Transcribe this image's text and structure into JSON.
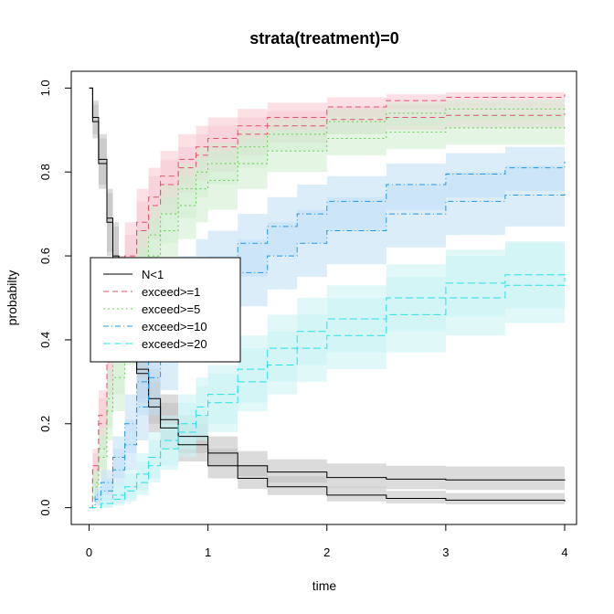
{
  "chart_data": {
    "type": "line",
    "title": "strata(treatment)=0",
    "xlabel": "time",
    "ylabel": "probabilty",
    "xlim": [
      -0.15,
      4.1
    ],
    "ylim": [
      -0.04,
      1.04
    ],
    "xticks": [
      0,
      1,
      2,
      3,
      4
    ],
    "xtick_labels": [
      "0",
      "1",
      "2",
      "3",
      "4"
    ],
    "yticks": [
      0.0,
      0.2,
      0.4,
      0.6,
      0.8,
      1.0
    ],
    "ytick_labels": [
      "0.0",
      "0.2",
      "0.4",
      "0.6",
      "0.8",
      "1.0"
    ],
    "grid": false,
    "legend_position": "left",
    "series": [
      {
        "name": "N<1",
        "color": "#000000",
        "band_color": "#bdbdbd",
        "dash": "",
        "curves": [
          {
            "x": [
              0,
              0.03,
              0.08,
              0.15,
              0.2,
              0.25,
              0.3,
              0.4,
              0.5,
              0.6,
              0.75,
              1.0,
              1.25,
              1.5,
              2.0,
              2.5,
              3.0,
              4.0
            ],
            "y": [
              1.0,
              0.92,
              0.82,
              0.68,
              0.59,
              0.52,
              0.44,
              0.33,
              0.26,
              0.21,
              0.17,
              0.13,
              0.1,
              0.085,
              0.072,
              0.068,
              0.066,
              0.065
            ],
            "lo": [
              1.0,
              0.88,
              0.76,
              0.6,
              0.5,
              0.42,
              0.35,
              0.26,
              0.2,
              0.16,
              0.13,
              0.1,
              0.075,
              0.06,
              0.048,
              0.044,
              0.042,
              0.04
            ],
            "hi": [
              1.0,
              0.96,
              0.88,
              0.75,
              0.67,
              0.6,
              0.53,
              0.41,
              0.33,
              0.27,
              0.22,
              0.17,
              0.135,
              0.115,
              0.105,
              0.1,
              0.098,
              0.097
            ]
          },
          {
            "x": [
              0,
              0.03,
              0.08,
              0.15,
              0.2,
              0.25,
              0.3,
              0.4,
              0.5,
              0.6,
              0.75,
              1.0,
              1.25,
              1.5,
              2.0,
              2.5,
              3.0,
              4.0
            ],
            "y": [
              1.0,
              0.93,
              0.83,
              0.69,
              0.6,
              0.52,
              0.44,
              0.32,
              0.24,
              0.19,
              0.15,
              0.1,
              0.07,
              0.05,
              0.03,
              0.022,
              0.018,
              0.015
            ],
            "lo": [
              1.0,
              0.89,
              0.77,
              0.61,
              0.51,
              0.43,
              0.35,
              0.25,
              0.18,
              0.14,
              0.11,
              0.07,
              0.045,
              0.03,
              0.015,
              0.01,
              0.008,
              0.006
            ],
            "hi": [
              1.0,
              0.97,
              0.89,
              0.76,
              0.68,
              0.6,
              0.52,
              0.4,
              0.31,
              0.25,
              0.2,
              0.14,
              0.1,
              0.075,
              0.05,
              0.04,
              0.035,
              0.032
            ]
          }
        ]
      },
      {
        "name": "exceed>=1",
        "color": "#df536b",
        "band_color": "#f7c8d2",
        "dash": "6,4",
        "curves": [
          {
            "x": [
              0,
              0.03,
              0.08,
              0.15,
              0.2,
              0.3,
              0.4,
              0.5,
              0.6,
              0.75,
              0.9,
              1.0,
              1.25,
              1.5,
              2.0,
              2.5,
              3.0,
              4.0
            ],
            "y": [
              0,
              0.1,
              0.22,
              0.38,
              0.48,
              0.6,
              0.68,
              0.74,
              0.79,
              0.83,
              0.86,
              0.88,
              0.91,
              0.93,
              0.955,
              0.97,
              0.978,
              0.985
            ],
            "lo": [
              0,
              0.06,
              0.16,
              0.3,
              0.39,
              0.51,
              0.6,
              0.67,
              0.72,
              0.77,
              0.81,
              0.83,
              0.87,
              0.9,
              0.93,
              0.95,
              0.96,
              0.97
            ],
            "hi": [
              0,
              0.14,
              0.28,
              0.46,
              0.56,
              0.68,
              0.76,
              0.81,
              0.85,
              0.89,
              0.91,
              0.93,
              0.95,
              0.965,
              0.978,
              0.985,
              0.99,
              0.995
            ]
          },
          {
            "x": [
              0,
              0.03,
              0.08,
              0.15,
              0.2,
              0.3,
              0.4,
              0.5,
              0.6,
              0.75,
              0.9,
              1.0,
              1.25,
              1.5,
              2.0,
              2.5,
              3.0,
              4.0
            ],
            "y": [
              0,
              0.09,
              0.2,
              0.35,
              0.45,
              0.57,
              0.66,
              0.72,
              0.77,
              0.81,
              0.84,
              0.86,
              0.89,
              0.91,
              0.925,
              0.93,
              0.935,
              0.94
            ],
            "lo": [
              0,
              0.05,
              0.14,
              0.27,
              0.36,
              0.48,
              0.57,
              0.64,
              0.7,
              0.75,
              0.78,
              0.8,
              0.84,
              0.87,
              0.89,
              0.9,
              0.905,
              0.91
            ],
            "hi": [
              0,
              0.13,
              0.26,
              0.43,
              0.53,
              0.65,
              0.73,
              0.79,
              0.83,
              0.86,
              0.89,
              0.91,
              0.93,
              0.945,
              0.955,
              0.96,
              0.962,
              0.965
            ]
          }
        ]
      },
      {
        "name": "exceed>=5",
        "color": "#61d04f",
        "band_color": "#cfeccd",
        "dash": "2,3",
        "curves": [
          {
            "x": [
              0,
              0.03,
              0.08,
              0.15,
              0.2,
              0.3,
              0.4,
              0.5,
              0.6,
              0.75,
              0.9,
              1.0,
              1.25,
              1.5,
              2.0,
              2.5,
              3.0,
              4.0
            ],
            "y": [
              0,
              0.06,
              0.14,
              0.26,
              0.35,
              0.48,
              0.58,
              0.65,
              0.7,
              0.76,
              0.8,
              0.82,
              0.86,
              0.89,
              0.92,
              0.94,
              0.95,
              0.958
            ],
            "lo": [
              0,
              0.03,
              0.09,
              0.19,
              0.27,
              0.39,
              0.49,
              0.57,
              0.63,
              0.69,
              0.74,
              0.77,
              0.81,
              0.85,
              0.89,
              0.91,
              0.925,
              0.935
            ],
            "hi": [
              0,
              0.09,
              0.19,
              0.33,
              0.43,
              0.56,
              0.66,
              0.72,
              0.77,
              0.82,
              0.86,
              0.87,
              0.9,
              0.925,
              0.95,
              0.965,
              0.972,
              0.978
            ]
          },
          {
            "x": [
              0,
              0.03,
              0.08,
              0.15,
              0.2,
              0.3,
              0.4,
              0.5,
              0.6,
              0.75,
              0.9,
              1.0,
              1.25,
              1.5,
              2.0,
              2.5,
              3.0,
              4.0
            ],
            "y": [
              0,
              0.05,
              0.12,
              0.23,
              0.31,
              0.43,
              0.53,
              0.6,
              0.66,
              0.72,
              0.76,
              0.78,
              0.82,
              0.85,
              0.88,
              0.895,
              0.905,
              0.91
            ],
            "lo": [
              0,
              0.02,
              0.07,
              0.16,
              0.23,
              0.34,
              0.44,
              0.51,
              0.57,
              0.64,
              0.68,
              0.71,
              0.76,
              0.8,
              0.84,
              0.855,
              0.865,
              0.87
            ],
            "hi": [
              0,
              0.08,
              0.17,
              0.3,
              0.39,
              0.52,
              0.62,
              0.69,
              0.74,
              0.79,
              0.83,
              0.85,
              0.88,
              0.9,
              0.92,
              0.93,
              0.94,
              0.945
            ]
          }
        ]
      },
      {
        "name": "exceed>=10",
        "color": "#2297e6",
        "band_color": "#bfdff5",
        "dash": "6,3,1,3",
        "curves": [
          {
            "x": [
              0,
              0.05,
              0.1,
              0.2,
              0.3,
              0.4,
              0.5,
              0.6,
              0.75,
              0.9,
              1.0,
              1.25,
              1.5,
              1.75,
              2.0,
              2.5,
              3.0,
              3.5,
              4.0
            ],
            "y": [
              0,
              0.03,
              0.06,
              0.12,
              0.2,
              0.3,
              0.39,
              0.45,
              0.52,
              0.56,
              0.58,
              0.63,
              0.67,
              0.7,
              0.73,
              0.77,
              0.795,
              0.81,
              0.825
            ],
            "lo": [
              0,
              0.01,
              0.03,
              0.07,
              0.13,
              0.22,
              0.3,
              0.36,
              0.43,
              0.47,
              0.5,
              0.55,
              0.6,
              0.63,
              0.66,
              0.71,
              0.74,
              0.755,
              0.77
            ],
            "hi": [
              0,
              0.05,
              0.09,
              0.17,
              0.27,
              0.38,
              0.47,
              0.54,
              0.6,
              0.64,
              0.66,
              0.7,
              0.74,
              0.77,
              0.79,
              0.82,
              0.845,
              0.86,
              0.87
            ]
          },
          {
            "x": [
              0,
              0.05,
              0.1,
              0.2,
              0.3,
              0.4,
              0.5,
              0.6,
              0.75,
              0.9,
              1.0,
              1.25,
              1.5,
              1.75,
              2.0,
              2.5,
              3.0,
              3.5,
              4.0
            ],
            "y": [
              0,
              0.02,
              0.04,
              0.09,
              0.15,
              0.24,
              0.31,
              0.37,
              0.44,
              0.49,
              0.52,
              0.56,
              0.6,
              0.63,
              0.66,
              0.7,
              0.73,
              0.745,
              0.755
            ],
            "lo": [
              0,
              0.005,
              0.015,
              0.05,
              0.09,
              0.16,
              0.22,
              0.28,
              0.35,
              0.4,
              0.43,
              0.48,
              0.52,
              0.55,
              0.58,
              0.62,
              0.65,
              0.67,
              0.68
            ],
            "hi": [
              0,
              0.04,
              0.07,
              0.14,
              0.21,
              0.31,
              0.39,
              0.46,
              0.52,
              0.57,
              0.6,
              0.64,
              0.68,
              0.71,
              0.74,
              0.77,
              0.8,
              0.815,
              0.825
            ]
          }
        ]
      },
      {
        "name": "exceed>=20",
        "color": "#28e2e5",
        "band_color": "#c8f3f4",
        "dash": "8,4",
        "curves": [
          {
            "x": [
              0,
              0.1,
              0.2,
              0.3,
              0.4,
              0.5,
              0.6,
              0.75,
              0.9,
              1.0,
              1.25,
              1.5,
              1.75,
              2.0,
              2.5,
              3.0,
              3.5,
              4.0
            ],
            "y": [
              0,
              0.01,
              0.03,
              0.05,
              0.08,
              0.12,
              0.16,
              0.2,
              0.24,
              0.27,
              0.33,
              0.38,
              0.42,
              0.45,
              0.5,
              0.535,
              0.555,
              0.565
            ],
            "lo": [
              0,
              0.0,
              0.01,
              0.02,
              0.04,
              0.07,
              0.1,
              0.14,
              0.17,
              0.2,
              0.25,
              0.3,
              0.34,
              0.37,
              0.42,
              0.455,
              0.475,
              0.485
            ],
            "hi": [
              0,
              0.03,
              0.06,
              0.09,
              0.13,
              0.18,
              0.22,
              0.27,
              0.31,
              0.34,
              0.41,
              0.46,
              0.5,
              0.53,
              0.58,
              0.615,
              0.635,
              0.645
            ]
          },
          {
            "x": [
              0,
              0.1,
              0.2,
              0.3,
              0.4,
              0.5,
              0.6,
              0.75,
              0.9,
              1.0,
              1.25,
              1.5,
              1.75,
              2.0,
              2.5,
              3.0,
              3.5,
              4.0
            ],
            "y": [
              0,
              0.01,
              0.02,
              0.04,
              0.06,
              0.1,
              0.14,
              0.18,
              0.22,
              0.25,
              0.3,
              0.34,
              0.38,
              0.41,
              0.46,
              0.5,
              0.53,
              0.548
            ],
            "lo": [
              0,
              0.0,
              0.005,
              0.015,
              0.03,
              0.06,
              0.09,
              0.12,
              0.16,
              0.18,
              0.23,
              0.27,
              0.3,
              0.33,
              0.37,
              0.41,
              0.44,
              0.46
            ],
            "hi": [
              0,
              0.025,
              0.05,
              0.08,
              0.11,
              0.16,
              0.2,
              0.25,
              0.29,
              0.32,
              0.38,
              0.42,
              0.46,
              0.5,
              0.55,
              0.6,
              0.63,
              0.66
            ]
          }
        ]
      }
    ]
  }
}
